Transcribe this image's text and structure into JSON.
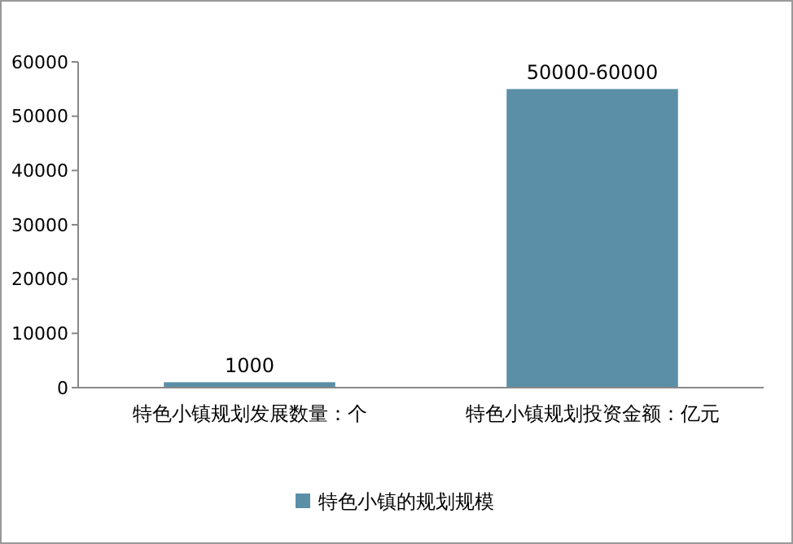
{
  "chart_data": {
    "type": "bar",
    "categories": [
      "特色小镇规划发展数量：个",
      "特色小镇规划投资金额：亿元"
    ],
    "series": [
      {
        "name": "特色小镇的规划规模",
        "color": "#5b8fa8",
        "values": [
          1000,
          55000
        ],
        "value_labels": [
          "1000",
          "50000-60000"
        ]
      }
    ],
    "ylim": [
      0,
      60000
    ],
    "yticks": [
      0,
      10000,
      20000,
      30000,
      40000,
      50000,
      60000
    ],
    "grid": false,
    "legend": "bottom"
  }
}
